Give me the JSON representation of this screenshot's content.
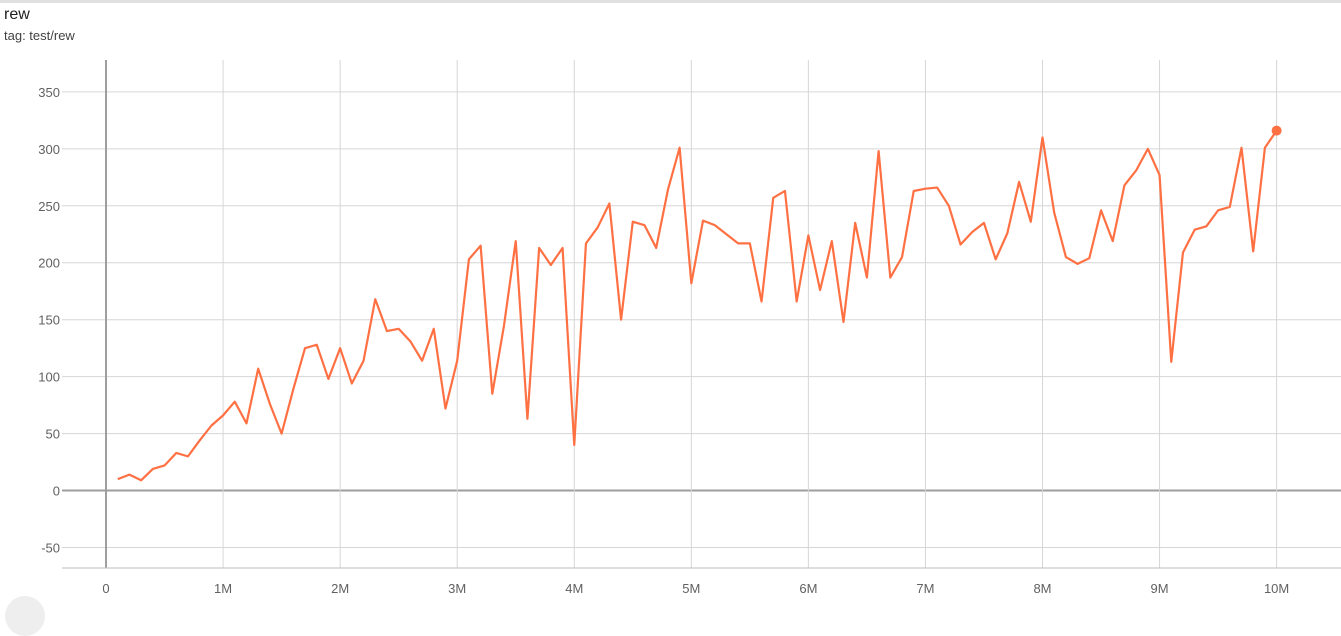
{
  "card": {
    "title": "rew",
    "tag": "tag: test/rew"
  },
  "chart_data": {
    "type": "line",
    "title": "",
    "xlabel": "",
    "ylabel": "",
    "xlim": [
      -376000,
      10550000
    ],
    "ylim": [
      -68,
      378
    ],
    "grid": true,
    "color": "#ff7043",
    "x_ticks": [
      {
        "v": 0,
        "label": "0"
      },
      {
        "v": 1000000,
        "label": "1M"
      },
      {
        "v": 2000000,
        "label": "2M"
      },
      {
        "v": 3000000,
        "label": "3M"
      },
      {
        "v": 4000000,
        "label": "4M"
      },
      {
        "v": 5000000,
        "label": "5M"
      },
      {
        "v": 6000000,
        "label": "6M"
      },
      {
        "v": 7000000,
        "label": "7M"
      },
      {
        "v": 8000000,
        "label": "8M"
      },
      {
        "v": 9000000,
        "label": "9M"
      },
      {
        "v": 10000000,
        "label": "10M"
      }
    ],
    "y_ticks": [
      {
        "v": -50,
        "label": "-50"
      },
      {
        "v": 0,
        "label": "0"
      },
      {
        "v": 50,
        "label": "50"
      },
      {
        "v": 100,
        "label": "100"
      },
      {
        "v": 150,
        "label": "150"
      },
      {
        "v": 200,
        "label": "200"
      },
      {
        "v": 250,
        "label": "250"
      },
      {
        "v": 300,
        "label": "300"
      },
      {
        "v": 350,
        "label": "350"
      }
    ],
    "x_step": 100000,
    "x_start": 100000,
    "values": [
      10,
      14,
      9,
      19,
      22,
      33,
      30,
      44,
      57,
      66,
      78,
      59,
      107,
      76,
      50,
      89,
      125,
      128,
      98,
      125,
      94,
      114,
      168,
      140,
      142,
      131,
      114,
      142,
      72,
      114,
      203,
      215,
      85,
      145,
      219,
      63,
      213,
      198,
      213,
      40,
      217,
      231,
      252,
      150,
      236,
      233,
      213,
      264,
      301,
      182,
      237,
      233,
      225,
      217,
      217,
      166,
      257,
      263,
      166,
      224,
      176,
      219,
      148,
      235,
      187,
      298,
      187,
      205,
      263,
      265,
      266,
      250,
      216,
      227,
      235,
      203,
      226,
      271,
      236,
      310,
      244,
      205,
      199,
      204,
      246,
      219,
      268,
      281,
      300,
      277,
      113,
      209,
      229,
      232,
      246,
      249,
      301,
      210,
      301,
      316
    ]
  }
}
